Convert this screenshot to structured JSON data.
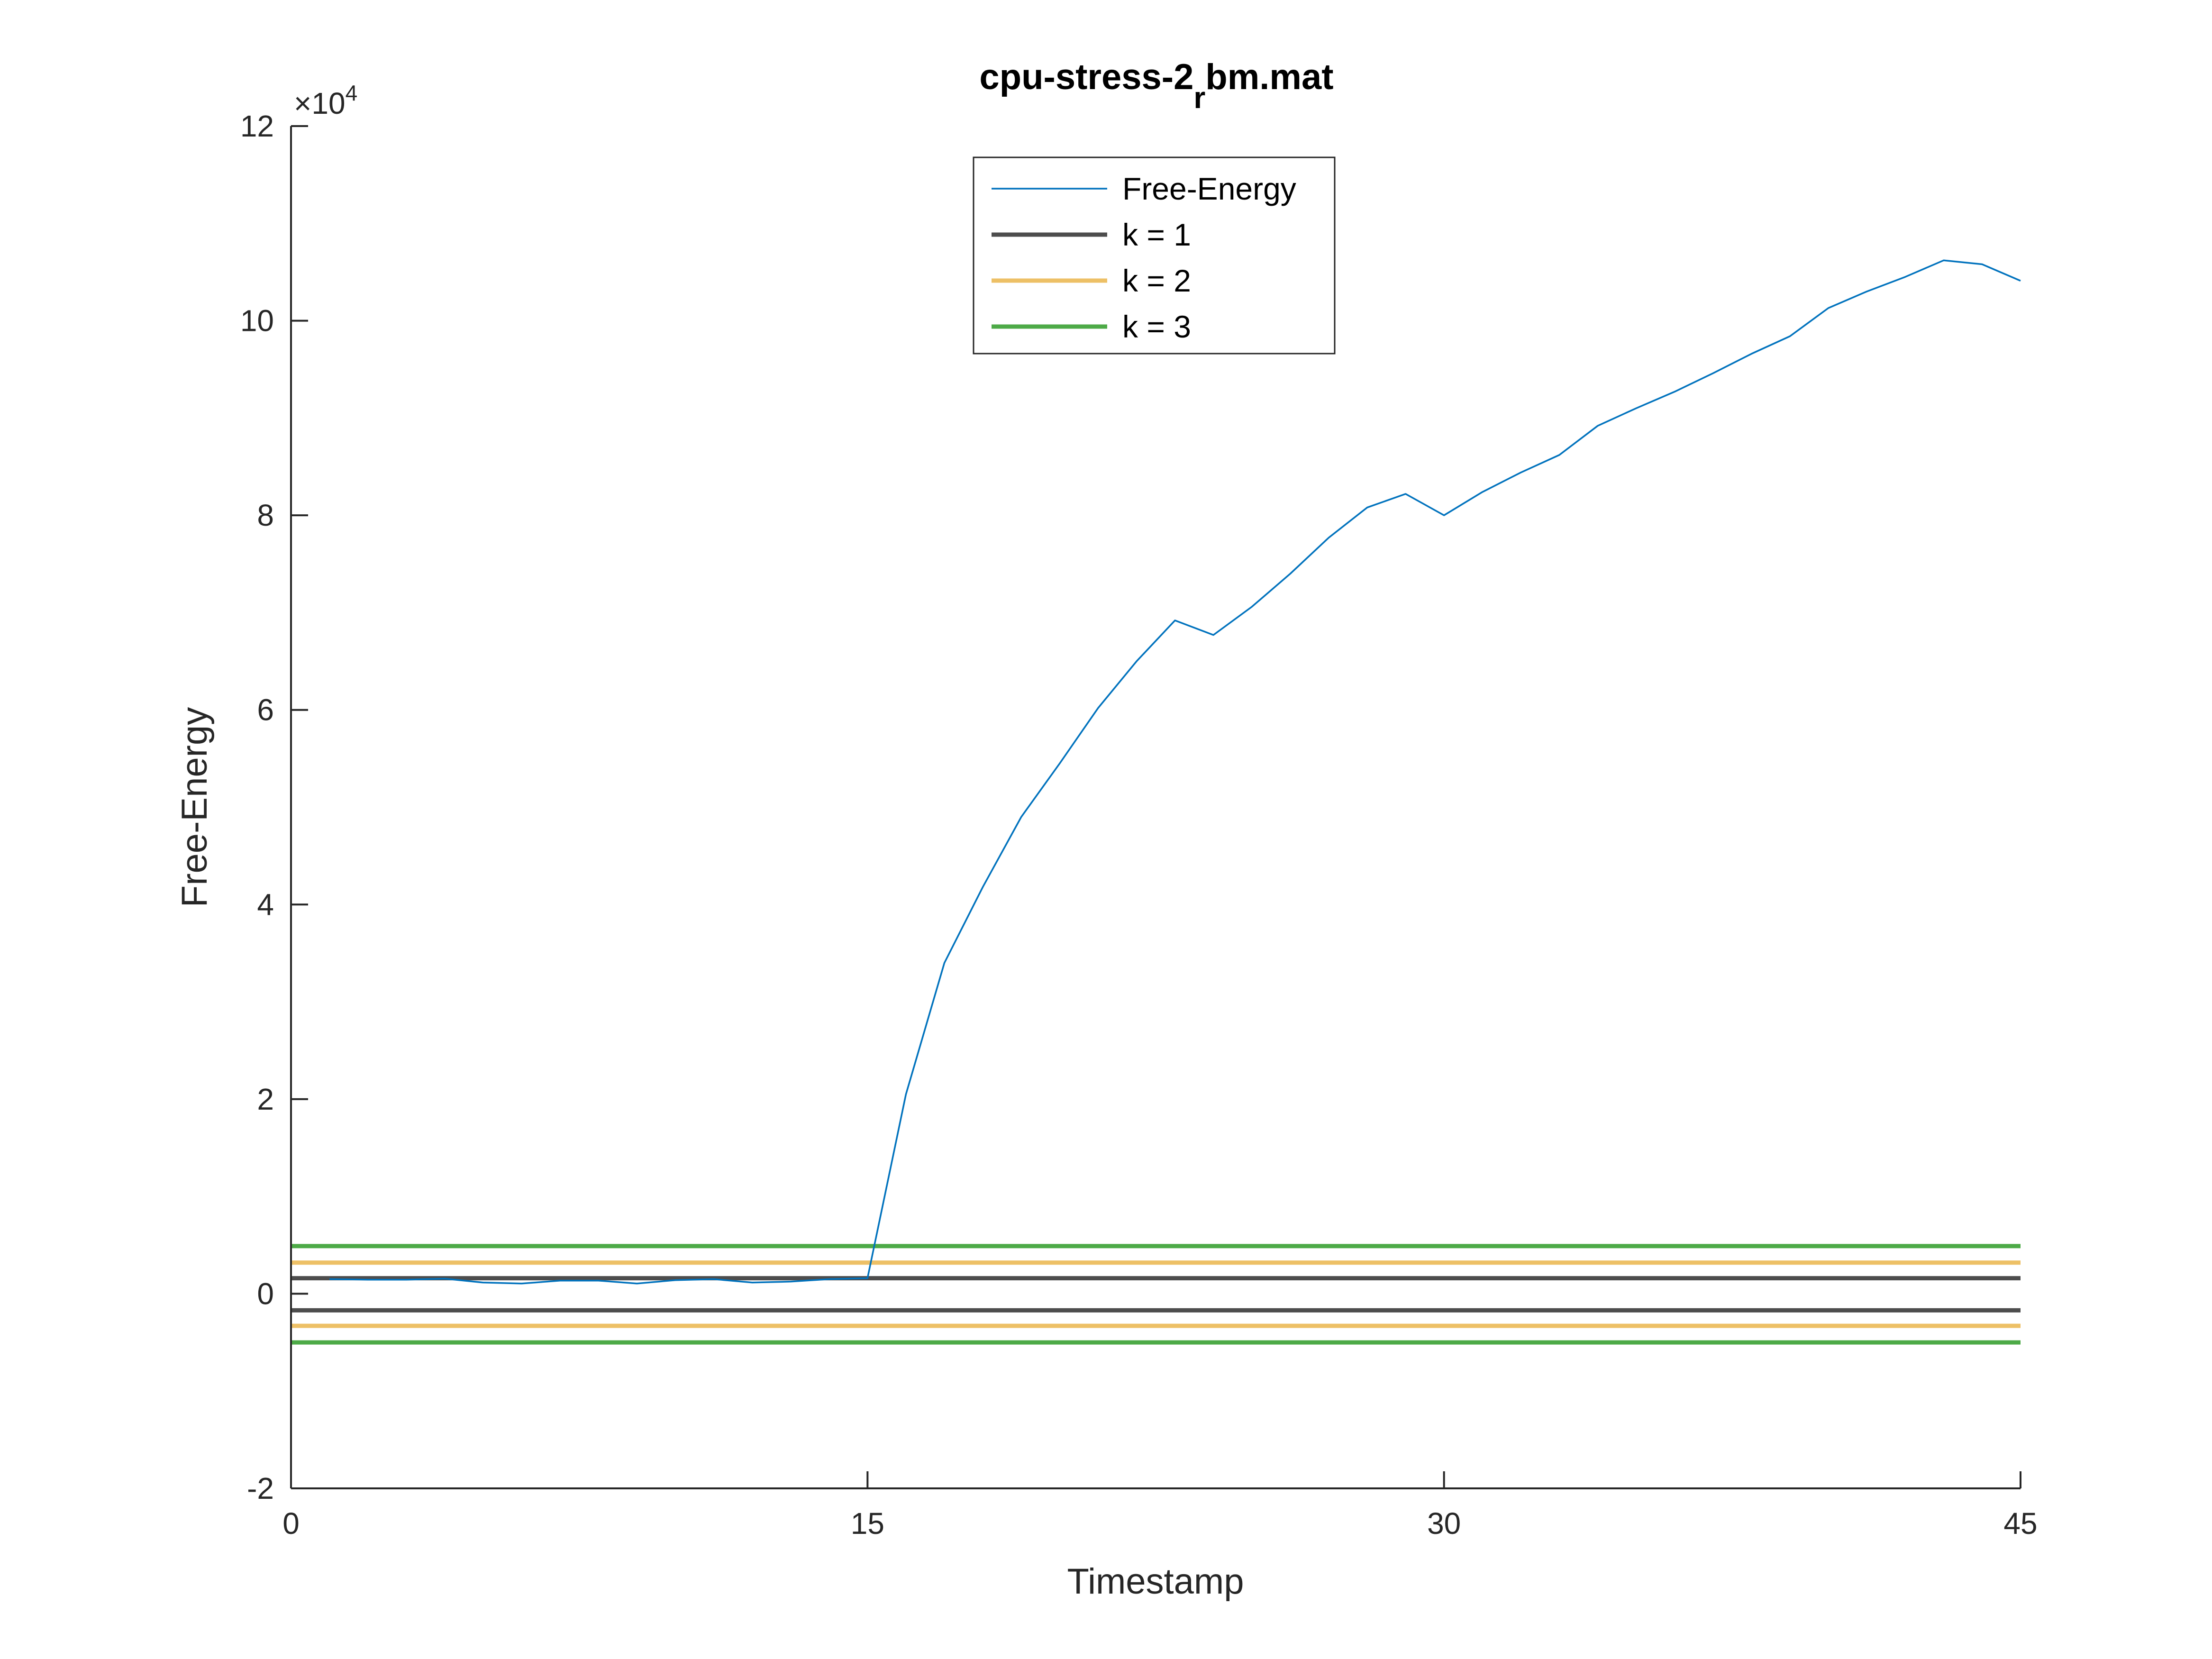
{
  "chart_data": {
    "type": "line",
    "title": "cpu-stress-2",
    "title_subscript": "r",
    "title_suffix": "bm.mat",
    "xlabel": "Timestamp",
    "ylabel": "Free-Energy",
    "xlim": [
      0,
      45
    ],
    "ylim": [
      -20000,
      120000
    ],
    "xticks": [
      0,
      15,
      30,
      45
    ],
    "xtick_labels": [
      "0",
      "15",
      "30",
      "45"
    ],
    "yticks": [
      -20000,
      0,
      20000,
      40000,
      60000,
      80000,
      100000,
      120000
    ],
    "ytick_labels": [
      "-2",
      "0",
      "2",
      "4",
      "6",
      "8",
      "10",
      "12"
    ],
    "y_exponent_base": "×10",
    "y_exponent_power": "4",
    "grid": false,
    "legend_position": "top-center",
    "series": [
      {
        "name": "Free-Energy",
        "color": "#0072BD",
        "x": [
          1,
          2,
          3,
          4,
          5,
          6,
          7,
          8,
          9,
          10,
          11,
          12,
          13,
          14,
          15,
          16,
          17,
          18,
          19,
          20,
          21,
          22,
          23,
          24,
          25,
          26,
          27,
          28,
          29,
          30,
          31,
          32,
          33,
          34,
          35,
          36,
          37,
          38,
          39,
          40,
          41,
          42,
          43,
          44,
          45
        ],
        "y": [
          1500,
          1450,
          1450,
          1550,
          1150,
          1050,
          1350,
          1350,
          1050,
          1400,
          1500,
          1150,
          1250,
          1500,
          1600,
          20500,
          34000,
          41800,
          49000,
          54500,
          60200,
          65000,
          69200,
          67700,
          70600,
          74000,
          77700,
          80800,
          82200,
          80000,
          82400,
          84400,
          86200,
          89200,
          91000,
          92700,
          94600,
          96600,
          98400,
          101300,
          103000,
          104500,
          106200,
          105800,
          104100
        ]
      },
      {
        "name": "k = 1",
        "color": "#4D4D4D",
        "hlines": [
          1600,
          -1700
        ]
      },
      {
        "name": "k = 2",
        "color": "#EDC066",
        "hlines": [
          3200,
          -3300
        ]
      },
      {
        "name": "k = 3",
        "color": "#4DAA47",
        "hlines": [
          4900,
          -5000
        ]
      }
    ]
  }
}
